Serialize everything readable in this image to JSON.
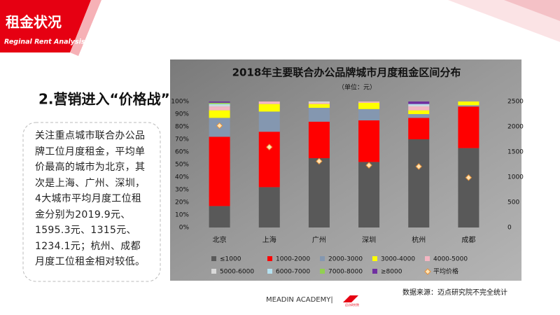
{
  "header": {
    "title": "租金状况",
    "subtitle": "Reginal Rent Analysis"
  },
  "heading": "2.营销进入“价格战”",
  "paragraph": "关注重点城市联合办公品牌工位月度租金，平均单价最高的城市为北京，其次是上海、广州、深圳，4大城市平均月度工位租金分别为2019.9元、1595.3元、1315元、1234.1元；杭州、成都月度工位租金相对较低。",
  "footer": {
    "brand": "MEADIN ACADEMY|",
    "logo_text": "迈点研究院",
    "source": "数据来源：迈点研究院不完全统计"
  },
  "chart_data": {
    "type": "bar",
    "stacked": true,
    "title": "2018年主要联合办公品牌城市月度租金区间分布",
    "subtitle": "（单位：元）",
    "categories": [
      "北京",
      "上海",
      "广州",
      "深圳",
      "杭州",
      "成都"
    ],
    "series": [
      {
        "name": "≤1000",
        "color": "#595959",
        "values": [
          17,
          32,
          55,
          52,
          70,
          63
        ]
      },
      {
        "name": "1000-2000",
        "color": "#ff0000",
        "values": [
          55,
          44,
          29,
          33,
          17,
          33
        ]
      },
      {
        "name": "2000-3000",
        "color": "#8497b0",
        "values": [
          15,
          16,
          11,
          9,
          3,
          1
        ]
      },
      {
        "name": "3000-4000",
        "color": "#ffff00",
        "values": [
          6,
          6,
          3,
          5,
          3,
          3
        ]
      },
      {
        "name": "4000-5000",
        "color": "#f4b6c2",
        "values": [
          3,
          2,
          1,
          1,
          3,
          0
        ]
      },
      {
        "name": "5000-6000",
        "color": "#d9d9d9",
        "values": [
          1,
          0,
          1,
          0,
          1,
          0
        ]
      },
      {
        "name": "6000-7000",
        "color": "#b4e1f0",
        "values": [
          1,
          0,
          0,
          0,
          1,
          0
        ]
      },
      {
        "name": "7000-8000",
        "color": "#92d050",
        "values": [
          1,
          0,
          0,
          0,
          0,
          0
        ]
      },
      {
        "name": "≥8000",
        "color": "#7030a0",
        "values": [
          1,
          0,
          0,
          0,
          2,
          0
        ]
      },
      {
        "name": "平均价格",
        "type": "scatter",
        "axis": "y2",
        "color": "#ffe4b5",
        "values": [
          2019.9,
          1595.3,
          1315,
          1234.1,
          1210,
          990
        ]
      }
    ],
    "ylim": [
      0,
      100
    ],
    "yticks": [
      {
        "value": 0,
        "label": "0%"
      },
      {
        "value": 10,
        "label": "10%"
      },
      {
        "value": 20,
        "label": "20%"
      },
      {
        "value": 30,
        "label": "30%"
      },
      {
        "value": 40,
        "label": "40%"
      },
      {
        "value": 50,
        "label": "50%"
      },
      {
        "value": 60,
        "label": "60%"
      },
      {
        "value": 70,
        "label": "70%"
      },
      {
        "value": 80,
        "label": "80%"
      },
      {
        "value": 90,
        "label": "90%"
      },
      {
        "value": 100,
        "label": "100%"
      }
    ],
    "y2lim": [
      0,
      2500
    ],
    "y2ticks": [
      0,
      500,
      1000,
      1500,
      2000,
      2500
    ],
    "grid": false
  }
}
